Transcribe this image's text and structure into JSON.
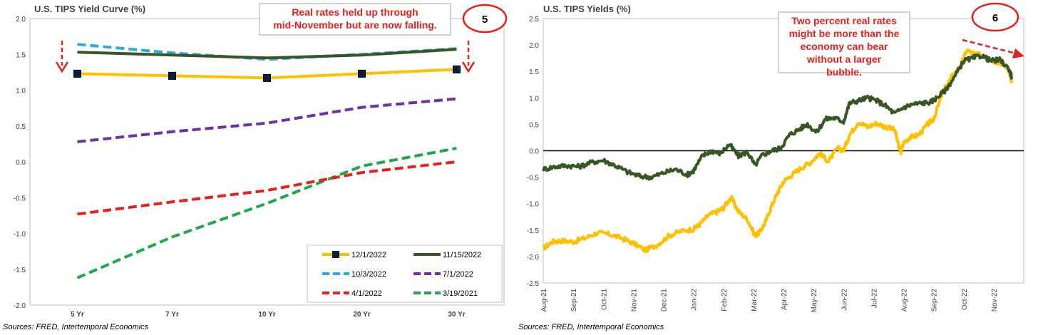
{
  "chart_data": [
    {
      "type": "line",
      "title": "U.S. TIPS Yield Curve (%)",
      "categories": [
        "5 Yr",
        "7 Yr",
        "10 Yr",
        "20 Yr",
        "30 Yr"
      ],
      "ylim": [
        -2.0,
        2.0
      ],
      "yticks": [
        "2.0",
        "1.5",
        "1.0",
        "0.5",
        "0.0",
        "-0.5",
        "-1.0",
        "-1.5",
        "-2.0"
      ],
      "grid": false,
      "legend_position": "bottom-right",
      "series": [
        {
          "name": "12/1/2022",
          "color": "#FFC000",
          "style": "solid-marker",
          "values": [
            1.23,
            1.2,
            1.17,
            1.23,
            1.29
          ]
        },
        {
          "name": "11/15/2022",
          "color": "#375623",
          "style": "solid",
          "values": [
            1.53,
            1.49,
            1.45,
            1.49,
            1.57
          ]
        },
        {
          "name": "10/3/2022",
          "color": "#29ABE2",
          "style": "dashed",
          "values": [
            1.64,
            1.52,
            1.43,
            1.5,
            1.58
          ]
        },
        {
          "name": "7/1/2022",
          "color": "#7030A0",
          "style": "dashed",
          "values": [
            0.28,
            0.42,
            0.54,
            0.76,
            0.88
          ]
        },
        {
          "name": "4/1/2022",
          "color": "#E8201C",
          "style": "dashed",
          "values": [
            -0.73,
            -0.56,
            -0.4,
            -0.15,
            0.0
          ]
        },
        {
          "name": "3/19/2021",
          "color": "#1DA84A",
          "style": "dashed",
          "values": [
            -1.62,
            -1.05,
            -0.58,
            -0.06,
            0.19
          ]
        }
      ],
      "annotations": {
        "callout": "Real rates held up through mid-November but are now falling.",
        "badge": "5"
      },
      "source": "Sources: FRED, Intertemporal Economics"
    },
    {
      "type": "line",
      "title": "U.S. TIPS Yields (%)",
      "categories": [
        "Aug-21",
        "Sep-21",
        "Oct-21",
        "Nov-21",
        "Dec-21",
        "Jan-22",
        "Feb-22",
        "Mar-22",
        "Apr-22",
        "May-22",
        "Jun-22",
        "Jul-22",
        "Aug-22",
        "Sep-22",
        "Oct-22",
        "Nov-22"
      ],
      "ylim": [
        -2.5,
        2.5
      ],
      "yticks": [
        "2.5",
        "2.0",
        "1.5",
        "1.0",
        "0.5",
        "0.0",
        "-0.5",
        "-1.0",
        "-1.5",
        "-2.0",
        "-2.5"
      ],
      "grid": false,
      "reference_line": 0.0,
      "series": [
        {
          "color": "#FFC000",
          "x": [
            0,
            0.3,
            0.6,
            1.0,
            1.4,
            1.8,
            2.2,
            2.6,
            3.0,
            3.4,
            3.8,
            4.2,
            4.6,
            5.0,
            5.2,
            5.5,
            5.8,
            6.0,
            6.25,
            6.5,
            6.8,
            7.05,
            7.2,
            7.4,
            7.6,
            7.8,
            8.0,
            8.3,
            8.6,
            8.9,
            9.2,
            9.5,
            9.8,
            10.0,
            10.2,
            10.5,
            10.8,
            11.1,
            11.4,
            11.7,
            11.9,
            12.0,
            12.2,
            12.5,
            12.8,
            13.0,
            13.3,
            13.6,
            13.9,
            14.1,
            14.4,
            14.7,
            15.0,
            15.3,
            15.5,
            15.6
          ],
          "values": [
            -1.85,
            -1.72,
            -1.7,
            -1.72,
            -1.65,
            -1.55,
            -1.58,
            -1.65,
            -1.75,
            -1.88,
            -1.78,
            -1.6,
            -1.52,
            -1.48,
            -1.4,
            -1.22,
            -1.15,
            -1.08,
            -0.88,
            -1.15,
            -1.3,
            -1.6,
            -1.55,
            -1.35,
            -1.05,
            -0.8,
            -0.58,
            -0.45,
            -0.32,
            -0.22,
            -0.05,
            -0.2,
            0.05,
            0.0,
            0.3,
            0.55,
            0.45,
            0.52,
            0.45,
            0.4,
            -0.05,
            0.15,
            0.25,
            0.3,
            0.5,
            0.6,
            1.1,
            1.4,
            1.6,
            1.9,
            1.82,
            1.8,
            1.7,
            1.65,
            1.55,
            1.28
          ]
        },
        {
          "color": "#375623",
          "x": [
            0,
            0.4,
            0.8,
            1.2,
            1.6,
            2.0,
            2.4,
            2.8,
            3.2,
            3.6,
            4.0,
            4.4,
            4.8,
            5.0,
            5.3,
            5.6,
            5.9,
            6.2,
            6.5,
            6.8,
            7.05,
            7.3,
            7.6,
            7.9,
            8.2,
            8.5,
            8.8,
            9.1,
            9.4,
            9.7,
            10.0,
            10.2,
            10.5,
            10.8,
            11.1,
            11.4,
            11.7,
            12.0,
            12.3,
            12.6,
            12.9,
            13.1,
            13.4,
            13.7,
            14.0,
            14.3,
            14.6,
            14.9,
            15.2,
            15.5,
            15.6
          ],
          "values": [
            -0.35,
            -0.3,
            -0.28,
            -0.3,
            -0.22,
            -0.18,
            -0.28,
            -0.4,
            -0.48,
            -0.5,
            -0.42,
            -0.35,
            -0.45,
            -0.38,
            -0.1,
            0.0,
            -0.05,
            0.12,
            -0.1,
            -0.02,
            -0.28,
            -0.08,
            0.0,
            0.05,
            0.3,
            0.4,
            0.5,
            0.35,
            0.6,
            0.62,
            0.55,
            0.9,
            0.95,
            1.0,
            0.95,
            0.85,
            0.7,
            0.82,
            0.88,
            0.9,
            0.92,
            1.0,
            1.15,
            1.4,
            1.7,
            1.75,
            1.8,
            1.7,
            1.72,
            1.55,
            1.4
          ]
        }
      ],
      "annotations": {
        "callout": "Two percent real rates might be more than the economy can bear without a larger bubble.",
        "badge": "6"
      },
      "source": "Sources: FRED, Intertemporal Economics"
    }
  ],
  "colors": {
    "callout_text": "#E8201C",
    "badge_ring": "#E8201C",
    "arrow": "#E8201C",
    "axis": "#BFBFBF"
  }
}
